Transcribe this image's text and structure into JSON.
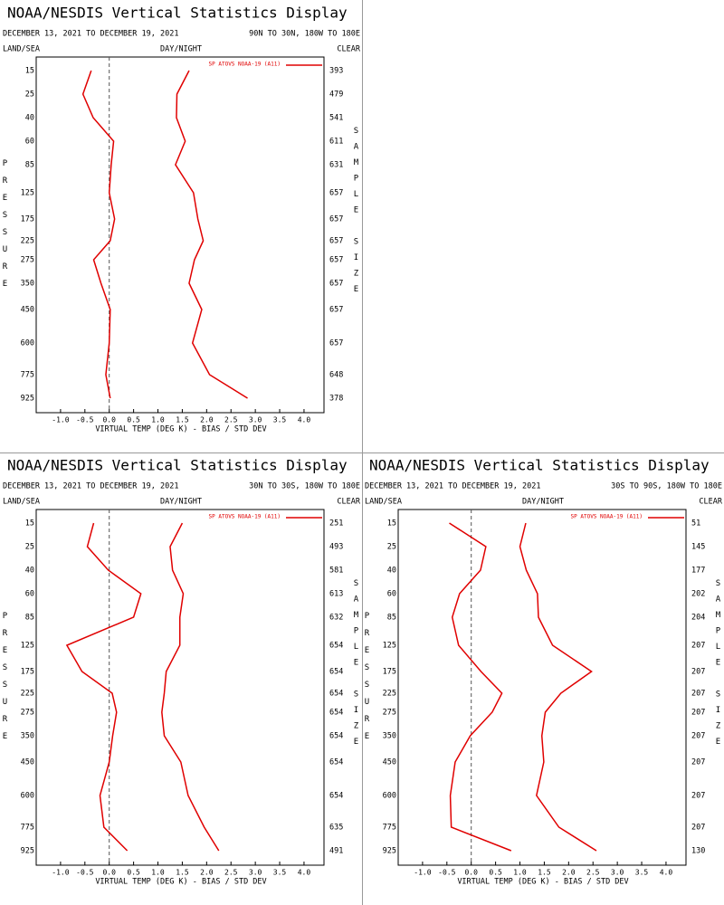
{
  "chart_data": [
    {
      "type": "line",
      "title": "NOAA/NESDIS Vertical Statistics Display",
      "subtitle": "DECEMBER 13, 2021 TO DECEMBER 19, 2021",
      "region": "90N TO 30N, 180W TO 180E",
      "left_label": "LAND/SEA",
      "center_label": "DAY/NIGHT",
      "right_label": "CLEAR",
      "ylabel": "PRESSURE",
      "y2label": "SAMPLE SIZE",
      "xlabel": "VIRTUAL TEMP (DEG K) - BIAS / STD DEV",
      "legend": "SP ATOVS NOAA-19 (A11)",
      "categories": [
        15,
        25,
        40,
        60,
        85,
        125,
        175,
        225,
        275,
        350,
        450,
        600,
        775,
        925
      ],
      "sample_sizes": [
        393,
        479,
        541,
        611,
        631,
        657,
        657,
        657,
        657,
        657,
        657,
        657,
        648,
        378
      ],
      "series": [
        {
          "color": "#e00000",
          "values": [
            -0.37,
            -0.54,
            -0.33,
            0.09,
            0.04,
            0.0,
            0.11,
            0.02,
            -0.32,
            -0.17,
            0.02,
            0.0,
            -0.07,
            0.02
          ]
        },
        {
          "color": "#e00000",
          "values": [
            1.64,
            1.39,
            1.38,
            1.56,
            1.36,
            1.73,
            1.82,
            1.93,
            1.75,
            1.64,
            1.9,
            1.71,
            2.06,
            2.84
          ]
        }
      ],
      "xlim": [
        -1.5,
        4.41
      ],
      "xticks": [
        {
          "value": -1,
          "label": "-1.0"
        },
        {
          "value": -0.5,
          "label": "-0.5"
        },
        {
          "value": 0,
          "label": "0.0"
        },
        {
          "value": 0.5,
          "label": "0.5"
        },
        {
          "value": 1,
          "label": "1.0"
        },
        {
          "value": 1.5,
          "label": "1.5"
        },
        {
          "value": 2,
          "label": "2.0"
        },
        {
          "value": 2.5,
          "label": "2.5"
        },
        {
          "value": 3,
          "label": "3.0"
        },
        {
          "value": 3.5,
          "label": "3.5"
        },
        {
          "value": 4,
          "label": "4.0"
        }
      ]
    },
    {
      "type": "line",
      "title": "NOAA/NESDIS Vertical Statistics Display",
      "subtitle": "DECEMBER 13, 2021 TO DECEMBER 19, 2021",
      "region": "30N TO 30S, 180W TO 180E",
      "left_label": "LAND/SEA",
      "center_label": "DAY/NIGHT",
      "right_label": "CLEAR",
      "ylabel": "PRESSURE",
      "y2label": "SAMPLE SIZE",
      "xlabel": "VIRTUAL TEMP (DEG K) - BIAS / STD DEV",
      "legend": "SP ATOVS NOAA-19 (A11)",
      "categories": [
        15,
        25,
        40,
        60,
        85,
        125,
        175,
        225,
        275,
        350,
        450,
        600,
        775,
        925
      ],
      "sample_sizes": [
        251,
        493,
        581,
        613,
        632,
        654,
        654,
        654,
        654,
        654,
        654,
        654,
        635,
        491
      ],
      "series": [
        {
          "color": "#e00000",
          "values": [
            -0.32,
            -0.45,
            -0.02,
            0.65,
            0.5,
            -0.87,
            -0.56,
            0.06,
            0.15,
            0.07,
            0.0,
            -0.19,
            -0.11,
            0.37
          ]
        },
        {
          "color": "#e00000",
          "values": [
            1.5,
            1.25,
            1.3,
            1.52,
            1.45,
            1.45,
            1.17,
            1.13,
            1.08,
            1.13,
            1.47,
            1.62,
            1.95,
            2.25
          ]
        }
      ],
      "xlim": [
        -1.5,
        4.41
      ],
      "xticks": [
        {
          "value": -1,
          "label": "-1.0"
        },
        {
          "value": -0.5,
          "label": "-0.5"
        },
        {
          "value": 0,
          "label": "0.0"
        },
        {
          "value": 0.5,
          "label": "0.5"
        },
        {
          "value": 1,
          "label": "1.0"
        },
        {
          "value": 1.5,
          "label": "1.5"
        },
        {
          "value": 2,
          "label": "2.0"
        },
        {
          "value": 2.5,
          "label": "2.5"
        },
        {
          "value": 3,
          "label": "3.0"
        },
        {
          "value": 3.5,
          "label": "3.5"
        },
        {
          "value": 4,
          "label": "4.0"
        }
      ]
    },
    {
      "type": "line",
      "title": "NOAA/NESDIS Vertical Statistics Display",
      "subtitle": "DECEMBER 13, 2021 TO DECEMBER 19, 2021",
      "region": "30S TO 90S, 180W TO 180E",
      "left_label": "LAND/SEA",
      "center_label": "DAY/NIGHT",
      "right_label": "CLEAR",
      "ylabel": "PRESSURE",
      "y2label": "SAMPLE SIZE",
      "xlabel": "VIRTUAL TEMP (DEG K) - BIAS / STD DEV",
      "legend": "SP ATOVS NOAA-19 (A11)",
      "categories": [
        15,
        25,
        40,
        60,
        85,
        125,
        175,
        225,
        275,
        350,
        450,
        600,
        775,
        925
      ],
      "sample_sizes": [
        51,
        145,
        177,
        202,
        204,
        207,
        207,
        207,
        207,
        207,
        207,
        207,
        207,
        130
      ],
      "series": [
        {
          "color": "#e00000",
          "values": [
            -0.45,
            0.3,
            0.19,
            -0.24,
            -0.39,
            -0.26,
            0.2,
            0.63,
            0.43,
            -0.02,
            -0.33,
            -0.43,
            -0.41,
            0.82
          ]
        },
        {
          "color": "#e00000",
          "values": [
            1.12,
            1.0,
            1.13,
            1.36,
            1.38,
            1.67,
            2.47,
            1.84,
            1.52,
            1.45,
            1.49,
            1.34,
            1.8,
            2.57
          ]
        }
      ],
      "xlim": [
        -1.5,
        4.41
      ],
      "xticks": [
        {
          "value": -1,
          "label": "-1.0"
        },
        {
          "value": -0.5,
          "label": "-0.5"
        },
        {
          "value": 0,
          "label": "0.0"
        },
        {
          "value": 0.5,
          "label": "0.5"
        },
        {
          "value": 1,
          "label": "1.0"
        },
        {
          "value": 1.5,
          "label": "1.5"
        },
        {
          "value": 2,
          "label": "2.0"
        },
        {
          "value": 2.5,
          "label": "2.5"
        },
        {
          "value": 3,
          "label": "3.0"
        },
        {
          "value": 3.5,
          "label": "3.5"
        },
        {
          "value": 4,
          "label": "4.0"
        }
      ]
    }
  ]
}
